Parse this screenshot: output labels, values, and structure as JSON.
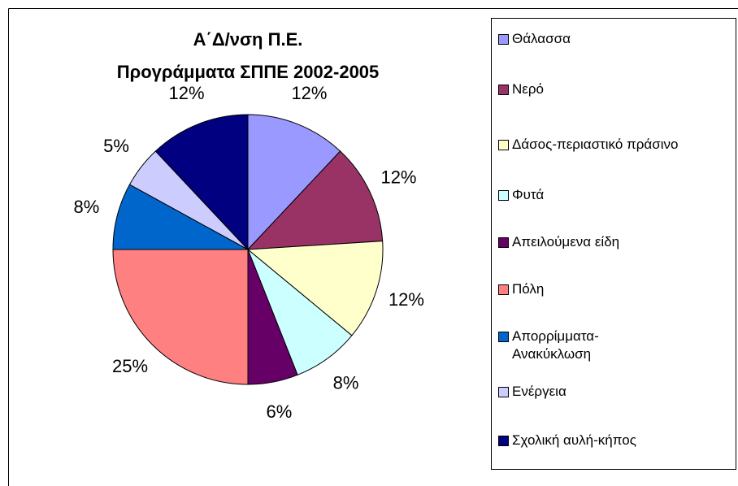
{
  "chart_data": {
    "type": "pie",
    "title": [
      "Α΄Δ/νση Π.Ε.",
      "Προγράμματα ΣΠΠΕ 2002-2005"
    ],
    "categories": [
      "Θάλασσα",
      "Νερό",
      "Δάσος-περιαστικό πράσινο",
      "Φυτά",
      "Απειλούμενα είδη",
      "Πόλη",
      "Απορρίμματα-Ανακύκλωση",
      "Ενέργεια",
      "Σχολική αυλή-κήπος"
    ],
    "values": [
      12,
      12,
      12,
      8,
      6,
      25,
      8,
      5,
      12
    ],
    "value_labels": [
      "12%",
      "12%",
      "12%",
      "8%",
      "6%",
      "25%",
      "8%",
      "5%",
      "12%"
    ],
    "colors": [
      "#9999ff",
      "#993366",
      "#ffffcc",
      "#ccffff",
      "#660066",
      "#ff8080",
      "#0066cc",
      "#ccccff",
      "#000080"
    ],
    "legend": "right"
  }
}
